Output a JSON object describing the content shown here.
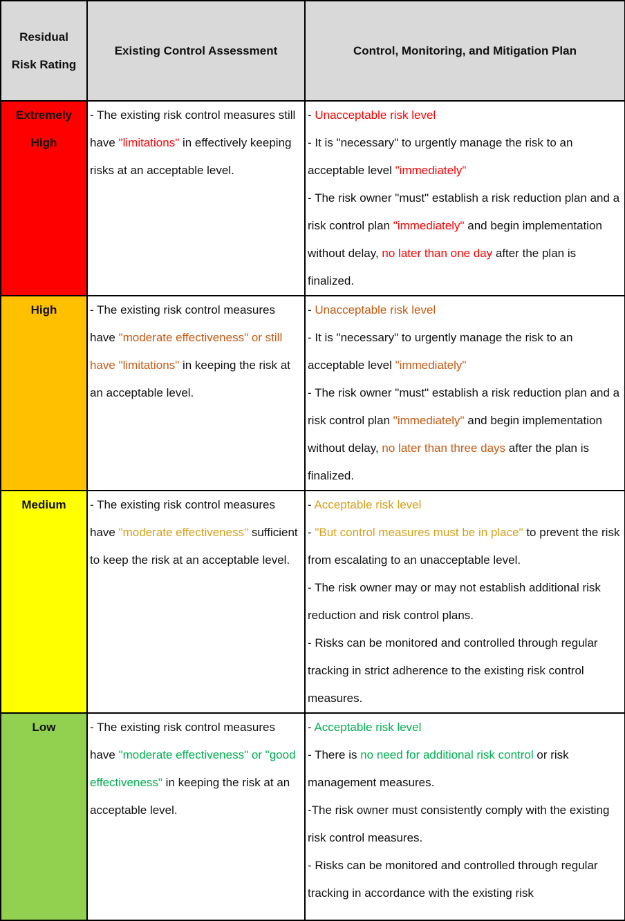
{
  "headers": [
    "Residual Risk Rating",
    "Existing Control Assessment",
    "Control, Monitoring, and Mitigation Plan"
  ],
  "colors": {
    "red": "#ff0000",
    "orange_fill": "#ffc000",
    "orange_text": "#c55a11",
    "yellow_fill": "#ffff00",
    "yellow_text": "#d4a017",
    "green_fill": "#92d050",
    "green_text": "#00b050",
    "header": "#d9d9d9"
  },
  "rows": [
    {
      "rating": "Extremely High",
      "fill": "#ff0000",
      "assessment": [
        {
          "t": "- The existing risk control measures still have "
        },
        {
          "t": "\"limitations\"",
          "c": "#ff0000"
        },
        {
          "t": " in effectively keeping risks at an acceptable level."
        }
      ],
      "plan": [
        [
          {
            "t": "- "
          },
          {
            "t": "Unacceptable risk level",
            "c": "#ff0000"
          }
        ],
        [
          {
            "t": "- It is \"necessary\" to urgently manage the risk to an acceptable level "
          },
          {
            "t": "\"immediately\"",
            "c": "#ff0000"
          }
        ],
        [
          {
            "t": "- The risk owner \"must\" establish a risk reduction plan and a risk control plan "
          },
          {
            "t": "\"immediately\"",
            "c": "#ff0000"
          },
          {
            "t": " and begin implementation without delay, "
          },
          {
            "t": "no later than one day",
            "c": "#ff0000"
          },
          {
            "t": " after the plan is finalized."
          }
        ]
      ]
    },
    {
      "rating": "High",
      "fill": "#ffc000",
      "assessment": [
        {
          "t": "- The existing risk control measures have "
        },
        {
          "t": "\"moderate effectiveness\" or still have \"limitations\"",
          "c": "#c55a11"
        },
        {
          "t": " in keeping the risk at an acceptable level."
        }
      ],
      "plan": [
        [
          {
            "t": "- "
          },
          {
            "t": "Unacceptable risk level",
            "c": "#c55a11"
          }
        ],
        [
          {
            "t": "- It is \"necessary\" to urgently manage the risk to an acceptable level "
          },
          {
            "t": "\"immediately\"",
            "c": "#c55a11"
          }
        ],
        [
          {
            "t": "- The risk owner \"must\" establish a risk reduction plan and a risk control plan "
          },
          {
            "t": "\"immediately\"",
            "c": "#c55a11"
          },
          {
            "t": " and begin implementation without delay, "
          },
          {
            "t": "no later than three days",
            "c": "#c55a11"
          },
          {
            "t": " after the plan is finalized."
          }
        ]
      ]
    },
    {
      "rating": "Medium",
      "fill": "#ffff00",
      "assessment": [
        {
          "t": "- The existing risk control measures have "
        },
        {
          "t": "\"moderate effectiveness\"",
          "c": "#d4a017"
        },
        {
          "t": " sufficient to keep the risk at an acceptable level."
        }
      ],
      "plan": [
        [
          {
            "t": "- "
          },
          {
            "t": "Acceptable risk level",
            "c": "#d4a017"
          }
        ],
        [
          {
            "t": "- "
          },
          {
            "t": "\"But control measures must be in place\"",
            "c": "#d4a017"
          },
          {
            "t": " to prevent the risk from escalating to an unacceptable level."
          }
        ],
        [
          {
            "t": "- The risk owner may or may not establish additional risk reduction and risk control plans."
          }
        ],
        [
          {
            "t": "- Risks can be monitored and controlled through regular tracking in strict adherence to the existing risk control measures."
          }
        ]
      ]
    },
    {
      "rating": "Low",
      "fill": "#92d050",
      "assessment": [
        {
          "t": "- The existing risk control measures have "
        },
        {
          "t": "\"moderate effectiveness\" or \"good effectiveness\"",
          "c": "#00b050"
        },
        {
          "t": " in keeping the risk at an acceptable level."
        }
      ],
      "plan": [
        [
          {
            "t": "- "
          },
          {
            "t": "Acceptable risk level",
            "c": "#00b050"
          }
        ],
        [
          {
            "t": "- There is "
          },
          {
            "t": "no need for additional risk control",
            "c": "#00b050"
          },
          {
            "t": " or risk management measures."
          }
        ],
        [
          {
            "t": " -The risk owner must consistently comply with the existing risk control measures."
          }
        ],
        [
          {
            "t": "- Risks can be monitored and controlled through regular tracking in accordance with the existing risk"
          }
        ]
      ]
    }
  ]
}
